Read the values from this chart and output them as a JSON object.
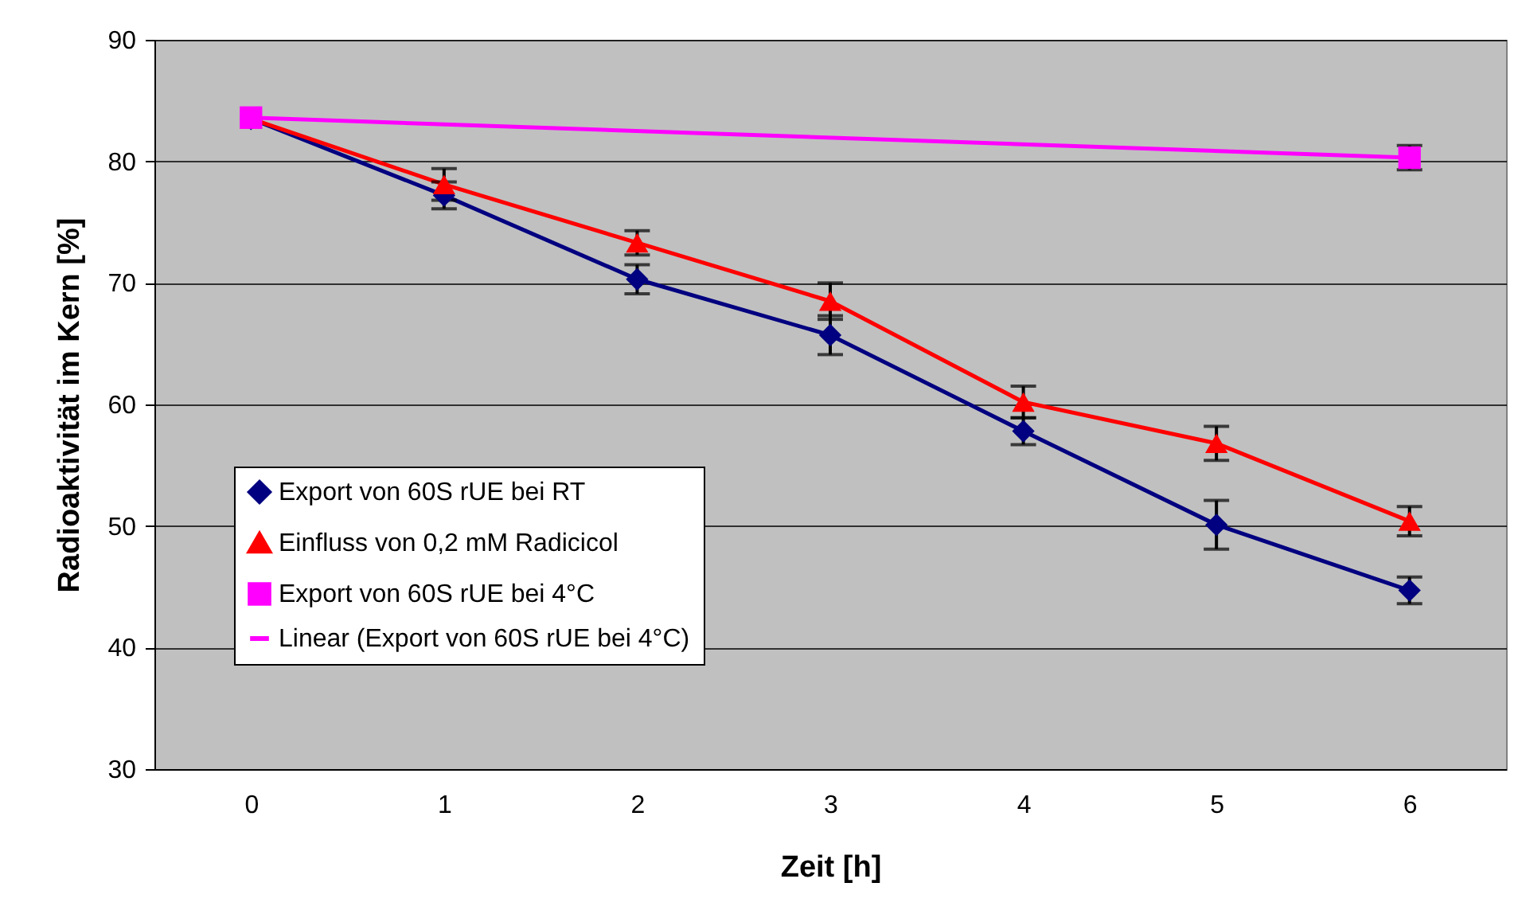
{
  "chart_data": {
    "type": "line",
    "xlabel": "Zeit [h]",
    "ylabel": "Radioaktivität im Kern [%]",
    "categories": [
      "0",
      "1",
      "2",
      "3",
      "4",
      "5",
      "6"
    ],
    "ylim": [
      30,
      90
    ],
    "yticks": [
      30,
      40,
      50,
      60,
      70,
      80,
      90
    ],
    "grid": "y",
    "legend": "bottom left",
    "line_style": "solid",
    "series": [
      {
        "name": "Export von 60S rUE bei RT",
        "color": "#000080",
        "marker": "diamond",
        "values": [
          83.5,
          77.2,
          70.3,
          65.7,
          57.8,
          50.1,
          44.7
        ],
        "errors": [
          null,
          1.1,
          1.2,
          1.6,
          1.1,
          2.0,
          1.1
        ]
      },
      {
        "name": "Einfluss von 0,2 mM Radicicol",
        "color": "#ff0000",
        "marker": "triangle",
        "values": [
          83.5,
          78.1,
          73.3,
          68.5,
          60.2,
          56.8,
          50.4
        ],
        "errors": [
          null,
          1.3,
          1.0,
          1.5,
          1.3,
          1.4,
          1.2
        ]
      },
      {
        "name": "Export von 60S rUE bei 4°C",
        "type": "scatter",
        "color": "#ff00ff",
        "marker": "square",
        "values": [
          83.6,
          null,
          null,
          null,
          null,
          null,
          80.3
        ],
        "errors": [
          null,
          null,
          null,
          null,
          null,
          null,
          1.0
        ]
      },
      {
        "name": "Linear (Export von 60S rUE bei 4°C)",
        "color": "#ff00ff",
        "marker": "none",
        "x": [
          "0",
          "6"
        ],
        "values": [
          83.6,
          80.3
        ]
      }
    ]
  }
}
